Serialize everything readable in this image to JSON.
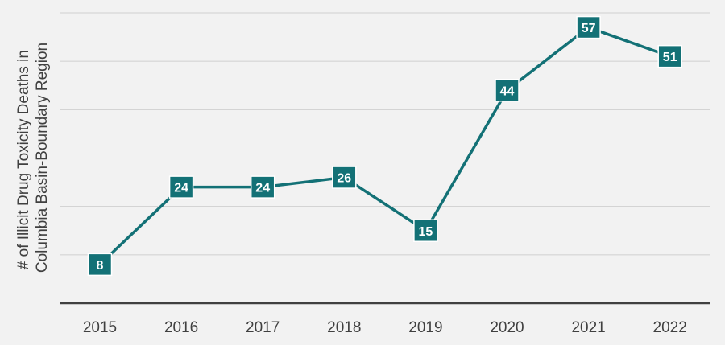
{
  "chart_data": {
    "type": "line",
    "categories": [
      "2015",
      "2016",
      "2017",
      "2018",
      "2019",
      "2020",
      "2021",
      "2022"
    ],
    "series": [
      {
        "values": [
          8,
          24,
          24,
          26,
          15,
          44,
          57,
          51
        ]
      }
    ],
    "ylabel_lines": [
      "# of Illicit Drug Toxicity Deaths in",
      "Columbia Basin-Boundary Region"
    ],
    "xlabel": "",
    "ylim": [
      0,
      60
    ],
    "ygrid_step": 10,
    "grid": true,
    "legend": false,
    "colors": {
      "series": "#137176",
      "grid": "#d0d0d0",
      "axis": "#404040",
      "background": "#f2f2f2"
    }
  }
}
